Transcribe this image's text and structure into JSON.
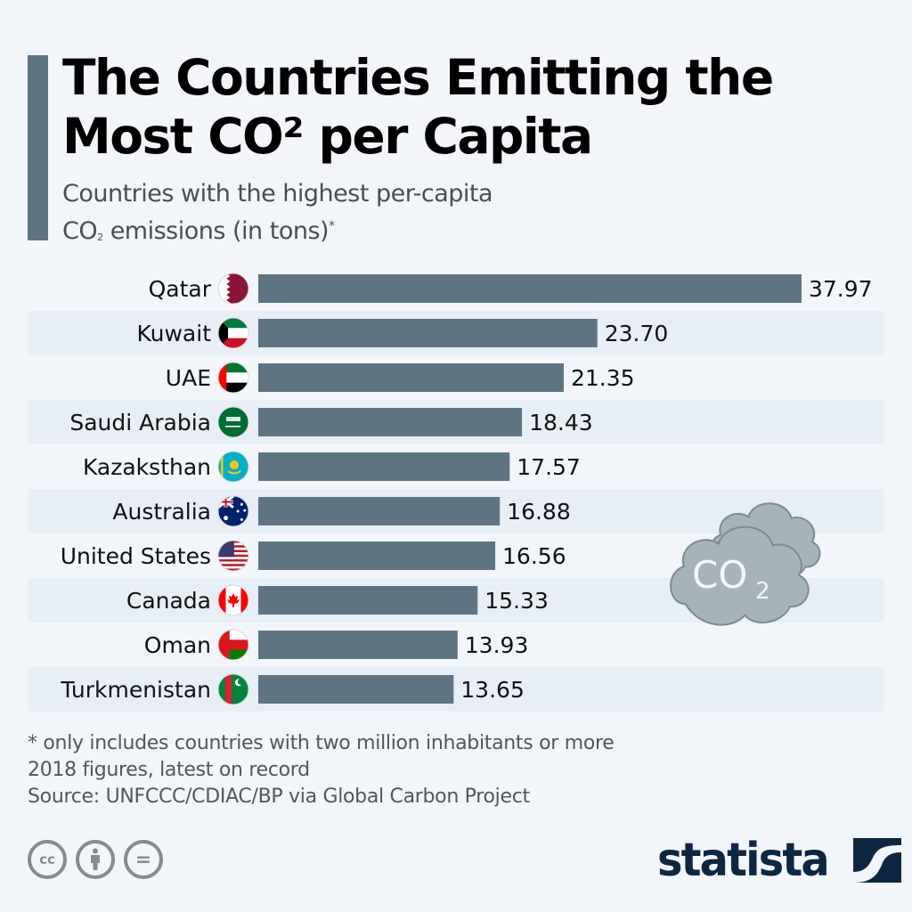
{
  "header": {
    "title_line1": "The Countries Emitting the",
    "title_line2": "Most CO² per Capita",
    "subtitle_line1": "Countries with the highest per-capita",
    "subtitle_line2_pre": "CO",
    "subtitle_line2_sub": "2",
    "subtitle_line2_post": " emissions (in tons)",
    "subtitle_line2_sup": "*"
  },
  "chart_data": {
    "type": "bar",
    "orientation": "horizontal",
    "title": "The Countries Emitting the Most CO² per Capita",
    "subtitle": "Countries with the highest per-capita CO2 emissions (in tons)*",
    "xlabel": "",
    "ylabel": "",
    "categories": [
      "Qatar",
      "Kuwait",
      "UAE",
      "Saudi Arabia",
      "Kazaksthan",
      "Australia",
      "United States",
      "Canada",
      "Oman",
      "Turkmenistan"
    ],
    "values": [
      37.97,
      23.7,
      21.35,
      18.43,
      17.57,
      16.88,
      16.56,
      15.33,
      13.93,
      13.65
    ],
    "value_labels": [
      "37.97",
      "23.70",
      "21.35",
      "18.43",
      "17.57",
      "16.88",
      "16.56",
      "15.33",
      "13.93",
      "13.65"
    ],
    "flag_icons": [
      "qatar-flag-icon",
      "kuwait-flag-icon",
      "uae-flag-icon",
      "saudi-arabia-flag-icon",
      "kazakhstan-flag-icon",
      "australia-flag-icon",
      "united-states-flag-icon",
      "canada-flag-icon",
      "oman-flag-icon",
      "turkmenistan-flag-icon"
    ],
    "xlim": [
      0,
      37.97
    ],
    "grid": false,
    "legend": "none",
    "bar_color": "#5f7482",
    "stripe_color": "#e8eef6"
  },
  "decoration": {
    "cloud_text": "CO",
    "cloud_sub": "2",
    "cloud_color": "#a7b3ba",
    "cloud_stroke": "#7c8b93"
  },
  "footer": {
    "note1": "* only includes countries with two million inhabitants or more",
    "note2": "2018 figures, latest on record",
    "source": "Source: UNFCCC/CDIAC/BP via Global Carbon Project",
    "license_icons": [
      "creative-commons-icon",
      "attribution-icon",
      "no-derivatives-icon"
    ],
    "cc_label": "cc",
    "nd_label": "=",
    "brand": "statista",
    "brand_color": "#0f2640"
  }
}
